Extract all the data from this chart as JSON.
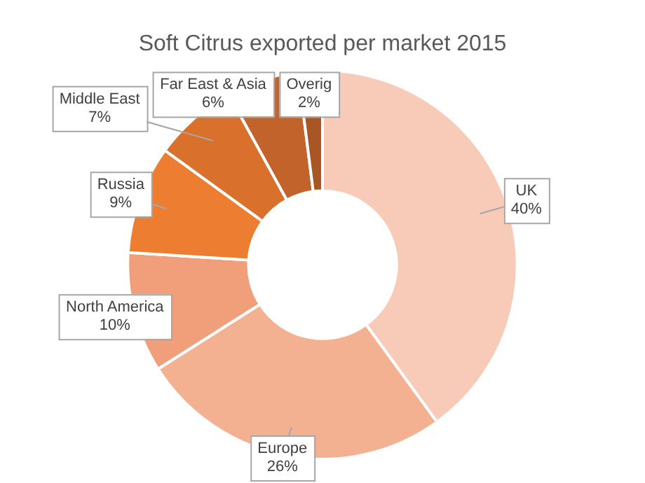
{
  "chart_data": {
    "type": "donut",
    "title": "Soft Citrus exported per market 2015",
    "categories": [
      "UK",
      "Europe",
      "North America",
      "Russia",
      "Middle East",
      "Far East & Asia",
      "Overig"
    ],
    "values": [
      40,
      26,
      10,
      9,
      7,
      6,
      2
    ],
    "value_labels": [
      "40%",
      "26%",
      "10%",
      "9%",
      "7%",
      "6%",
      "2%"
    ],
    "colors": [
      "#f8cbb8",
      "#f4b191",
      "#f09f7a",
      "#ed7d31",
      "#d9712c",
      "#c1632a",
      "#a85624"
    ],
    "legend": false
  }
}
